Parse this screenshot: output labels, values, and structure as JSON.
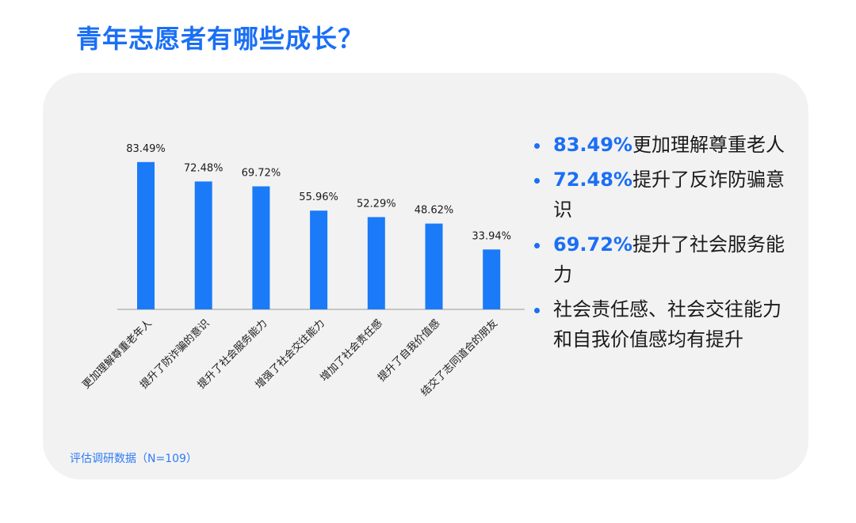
{
  "header": {
    "title": "青年志愿者有哪些成长？"
  },
  "source": "评估调研数据（N=109）",
  "colors": {
    "accent": "#1a6ff5",
    "bar": "#1a7af8",
    "card": "#f2f2f2"
  },
  "bullets": [
    {
      "pct": "83.49%",
      "text": "更加理解尊重老人"
    },
    {
      "pct": "72.48%",
      "text": "提升了反诈防骗意识"
    },
    {
      "pct": "69.72%",
      "text": "提升了社会服务能力"
    },
    {
      "pct": "",
      "text": "社会责任感、社会交往能力和自我价值感均有提升"
    }
  ],
  "chart_data": {
    "type": "bar",
    "title": "",
    "xlabel": "",
    "ylabel": "",
    "ylim": [
      0,
      100
    ],
    "grid": false,
    "categories": [
      "更加理解尊重老年人",
      "提升了防诈骗的意识",
      "提升了社会服务能力",
      "增强了社会交往能力",
      "增加了社会责任感",
      "提升了自我价值感",
      "结交了志同道合的朋友"
    ],
    "values": [
      83.49,
      72.48,
      69.72,
      55.96,
      52.29,
      48.62,
      33.94
    ],
    "labels": [
      "83.49%",
      "72.48%",
      "69.72%",
      "55.96%",
      "52.29%",
      "48.62%",
      "33.94%"
    ]
  }
}
